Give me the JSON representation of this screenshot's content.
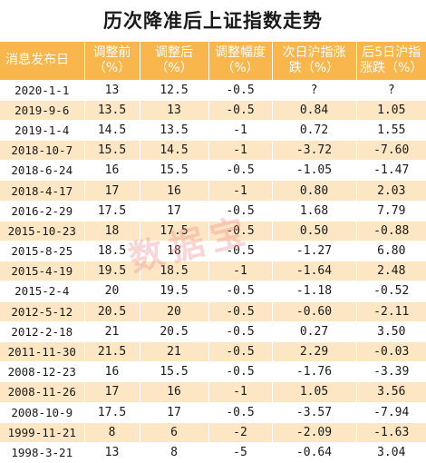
{
  "title": "历次降准后上证指数走势",
  "headers": [
    [
      "消息发布日"
    ],
    [
      "调整前",
      "（%）"
    ],
    [
      "调整后",
      "（%）"
    ],
    [
      "调整幅度",
      "（%）"
    ],
    [
      "次日沪指涨",
      "跌（%）"
    ],
    [
      "后5日沪指",
      "涨跌（%）"
    ]
  ],
  "rows": [
    [
      "2020-1-1",
      "13",
      "12.5",
      "-0.5",
      "?",
      "?"
    ],
    [
      "2019-9-6",
      "13.5",
      "13",
      "-0.5",
      "0.84",
      "1.05"
    ],
    [
      "2019-1-4",
      "14.5",
      "13.5",
      "-1",
      "0.72",
      "1.55"
    ],
    [
      "2018-10-7",
      "15.5",
      "14.5",
      "-1",
      "-3.72",
      "-7.60"
    ],
    [
      "2018-6-24",
      "16",
      "15.5",
      "-0.5",
      "-1.05",
      "-1.47"
    ],
    [
      "2018-4-17",
      "17",
      "16",
      "-1",
      "0.80",
      "2.03"
    ],
    [
      "2016-2-29",
      "17.5",
      "17",
      "-0.5",
      "1.68",
      "7.79"
    ],
    [
      "2015-10-23",
      "18",
      "17.5",
      "-0.5",
      "0.50",
      "-0.88"
    ],
    [
      "2015-8-25",
      "18.5",
      "18",
      "-0.5",
      "-1.27",
      "6.80"
    ],
    [
      "2015-4-19",
      "19.5",
      "18.5",
      "-1",
      "-1.64",
      "2.48"
    ],
    [
      "2015-2-4",
      "20",
      "19.5",
      "-0.5",
      "-1.18",
      "-0.52"
    ],
    [
      "2012-5-12",
      "20.5",
      "20",
      "-0.5",
      "-0.60",
      "-2.11"
    ],
    [
      "2012-2-18",
      "21",
      "20.5",
      "-0.5",
      "0.27",
      "3.50"
    ],
    [
      "2011-11-30",
      "21.5",
      "21",
      "-0.5",
      "2.29",
      "-0.03"
    ],
    [
      "2008-12-23",
      "16",
      "15.5",
      "-0.5",
      "-1.76",
      "-3.39"
    ],
    [
      "2008-11-26",
      "17",
      "16",
      "-1",
      "1.05",
      "3.56"
    ],
    [
      "2008-10-9",
      "17.5",
      "17",
      "-0.5",
      "-3.57",
      "-7.94"
    ],
    [
      "1999-11-21",
      "8",
      "6",
      "-2",
      "-2.09",
      "-1.63"
    ],
    [
      "1998-3-21",
      "13",
      "8",
      "-5",
      "-0.64",
      "3.04"
    ]
  ],
  "watermark": "数据宝",
  "colors": {
    "header_bg": "#f8b64c",
    "stripe_bg": "#fde6c3",
    "header_text": "#ffffff",
    "body_text": "#1a1a1a"
  }
}
